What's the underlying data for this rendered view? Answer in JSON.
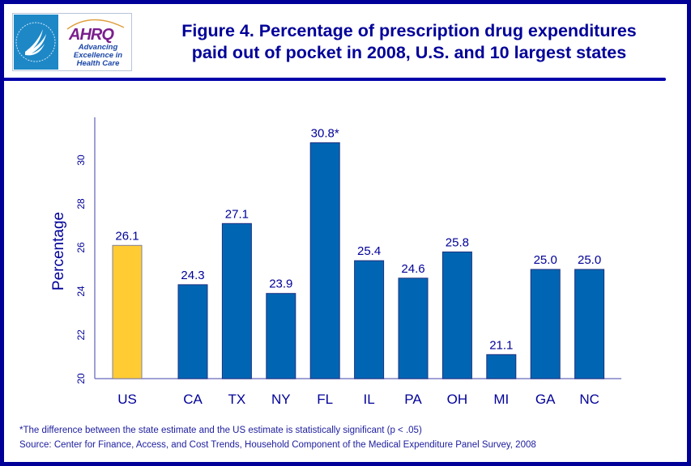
{
  "logo": {
    "hhs_label": "HHS eagle seal",
    "ahrq_name": "AHRQ",
    "ahrq_tagline": "Advancing Excellence in Health Care"
  },
  "header": {
    "title_line1": "Figure 4.  Percentage of prescription drug expenditures",
    "title_line2": "paid out of pocket in 2008, U.S. and 10 largest states"
  },
  "colors": {
    "frame": "#000099",
    "us_bar": "#FFCC33",
    "state_bar": "#0066B3",
    "text": "#000099"
  },
  "chart_data": {
    "type": "bar",
    "title": "Figure 4. Percentage of prescription drug expenditures paid out of pocket in 2008, U.S. and 10 largest states",
    "xlabel": "",
    "ylabel": "Percentage",
    "ylim": [
      20,
      32
    ],
    "yticks": [
      20,
      22,
      24,
      26,
      28,
      30
    ],
    "grid": false,
    "legend": "none",
    "categories": [
      "US",
      "CA",
      "TX",
      "NY",
      "FL",
      "IL",
      "PA",
      "OH",
      "MI",
      "GA",
      "NC"
    ],
    "values": [
      26.1,
      24.3,
      27.1,
      23.9,
      30.8,
      25.4,
      24.6,
      25.8,
      21.1,
      25.0,
      25.0
    ],
    "data_labels": [
      "26.1",
      "24.3",
      "27.1",
      "23.9",
      "30.8*",
      "25.4",
      "24.6",
      "25.8",
      "21.1",
      "25.0",
      "25.0"
    ],
    "highlight": [
      "US"
    ],
    "significant": [
      "FL"
    ]
  },
  "footnotes": {
    "significance": "*The difference between the state estimate and the US estimate is statistically significant (p < .05)",
    "source": "Source: Center for Finance, Access, and Cost Trends, Household Component of the Medical Expenditure Panel Survey, 2008"
  }
}
